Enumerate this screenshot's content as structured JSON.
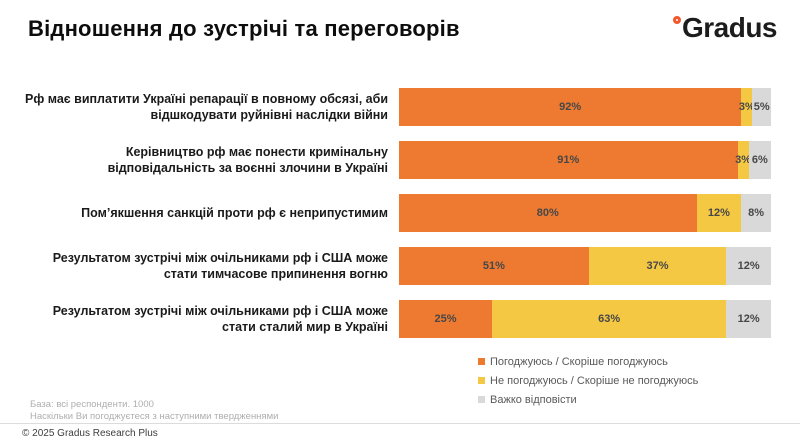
{
  "header": {
    "title": "Відношення до зустрічі та переговорів",
    "logo_text": "Gradus",
    "logo_ring_color": "#f1582a"
  },
  "chart_data": {
    "type": "bar",
    "stacked": true,
    "orientation": "horizontal",
    "title": "Відношення до зустрічі та переговорів",
    "xlim": [
      0,
      100
    ],
    "grid": false,
    "legend_position": "bottom-right",
    "value_suffix": "%",
    "categories": [
      "Рф має виплатити Україні репарації в повному обсязі, аби відшкодувати руйнівні наслідки війни",
      "Керівництво рф має понести кримінальну відповідальність за воєнні злочини в Україні",
      "Пом’якшення санкцій проти рф є неприпустимим",
      "Результатом зустрічі між очільниками рф і США може стати тимчасове припинення вогню",
      "Результатом зустрічі між очільниками рф і США може стати сталий мир в Україні"
    ],
    "series": [
      {
        "name": "Погоджуюсь / Скоріше погоджуюсь",
        "color": "#ed7a30",
        "values": [
          92,
          91,
          80,
          51,
          25
        ]
      },
      {
        "name": "Не погоджуюсь / Скоріше не погоджуюсь",
        "color": "#f5c844",
        "values": [
          3,
          3,
          12,
          37,
          63
        ]
      },
      {
        "name": "Важко відповісти",
        "color": "#d9d9d9",
        "values": [
          5,
          6,
          8,
          12,
          12
        ]
      }
    ]
  },
  "footer": {
    "base_note": "База: всі респонденти. 1000",
    "question_note": "Наскільки Ви погоджуєтеся з наступними твердженнями",
    "copyright": "© 2025 Gradus Research Plus"
  }
}
